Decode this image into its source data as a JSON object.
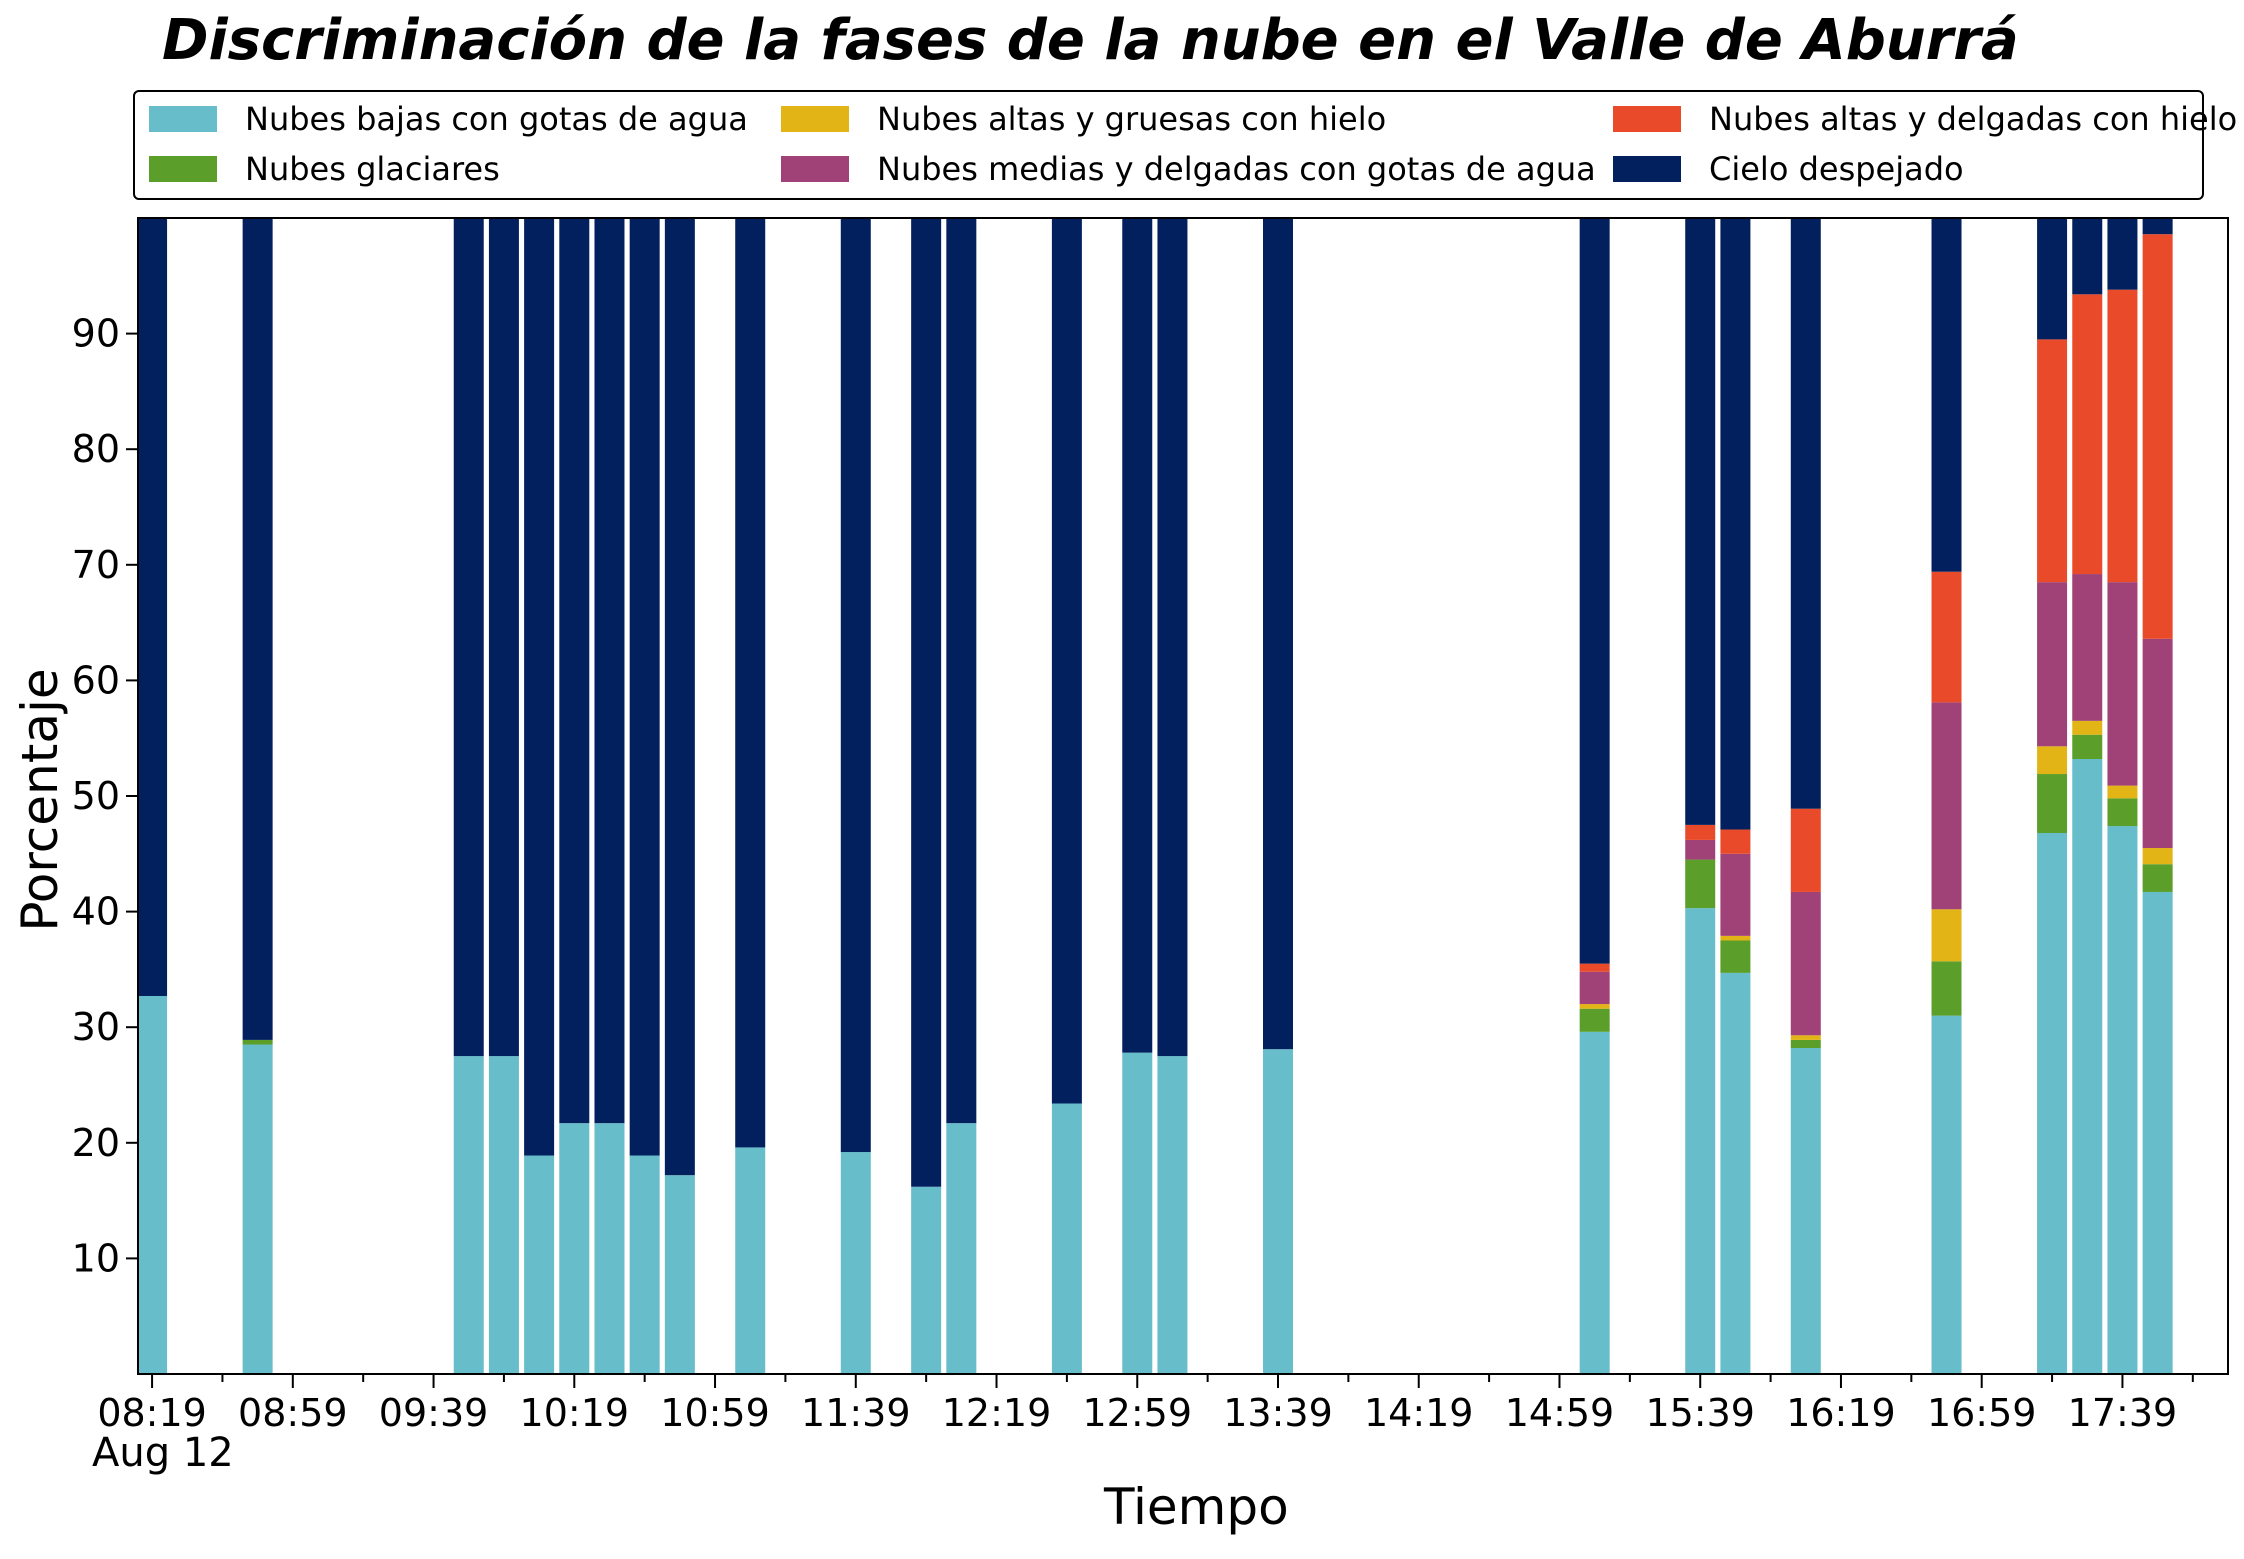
{
  "chart_data": {
    "type": "bar",
    "stacked": true,
    "title": "Discriminación de la fases de la nube en el Valle de Aburrá",
    "xlabel": "Tiempo",
    "ylabel": "Porcentaje",
    "date_label": "Aug 12",
    "ylim": [
      0,
      100
    ],
    "y_ticks": [
      10,
      20,
      30,
      40,
      50,
      60,
      70,
      80,
      90
    ],
    "x_tick_labels": [
      "08:19",
      "08:59",
      "09:39",
      "10:19",
      "10:59",
      "11:39",
      "12:19",
      "12:59",
      "13:39",
      "14:19",
      "14:59",
      "15:39",
      "16:19",
      "16:59",
      "17:39"
    ],
    "x_range": [
      "08:15",
      "18:09"
    ],
    "legend_position": "top",
    "x": [
      "08:19",
      "08:49",
      "09:49",
      "09:59",
      "10:09",
      "10:19",
      "10:29",
      "10:39",
      "10:49",
      "11:09",
      "11:39",
      "11:59",
      "12:09",
      "12:39",
      "12:59",
      "13:09",
      "13:39",
      "15:09",
      "15:39",
      "15:49",
      "16:09",
      "16:49",
      "17:19",
      "17:29",
      "17:39",
      "17:49"
    ],
    "series": [
      {
        "name": "Nubes bajas con gotas de agua",
        "color": "#67bdc9",
        "values": [
          32.7,
          28.5,
          27.5,
          27.5,
          18.9,
          21.7,
          21.7,
          18.9,
          17.2,
          19.6,
          19.2,
          16.2,
          21.7,
          23.4,
          27.8,
          27.5,
          28.1,
          29.6,
          40.3,
          34.7,
          28.2,
          31.0,
          46.8,
          53.2,
          47.4,
          41.7
        ]
      },
      {
        "name": "Nubes glaciares",
        "color": "#5b9e2a",
        "values": [
          0,
          0.4,
          0,
          0,
          0,
          0,
          0,
          0,
          0,
          0,
          0,
          0,
          0,
          0,
          0,
          0,
          0,
          2.0,
          4.2,
          2.8,
          0.7,
          4.7,
          5.1,
          2.1,
          2.4,
          2.4
        ]
      },
      {
        "name": "Nubes altas y gruesas con hielo",
        "color": "#e2b416",
        "values": [
          0,
          0,
          0,
          0,
          0,
          0,
          0,
          0,
          0,
          0,
          0,
          0,
          0,
          0,
          0,
          0,
          0,
          0.4,
          0,
          0.4,
          0.4,
          4.5,
          2.4,
          1.2,
          1.1,
          1.4
        ]
      },
      {
        "name": "Nubes medias y delgadas con gotas de agua",
        "color": "#a04277",
        "values": [
          0,
          0,
          0,
          0,
          0,
          0,
          0,
          0,
          0,
          0,
          0,
          0,
          0,
          0,
          0,
          0,
          0,
          2.8,
          1.7,
          7.1,
          12.4,
          17.9,
          14.2,
          12.7,
          17.6,
          18.1
        ]
      },
      {
        "name": "Nubes altas y delgadas con hielo",
        "color": "#e94b2a",
        "values": [
          0,
          0,
          0,
          0,
          0,
          0,
          0,
          0,
          0,
          0,
          0,
          0,
          0,
          0,
          0,
          0,
          0,
          0.7,
          1.3,
          2.1,
          7.2,
          11.3,
          21.0,
          24.2,
          25.3,
          35.0
        ]
      },
      {
        "name": "Cielo despejado",
        "color": "#03205e",
        "values": [
          67.3,
          71.1,
          72.5,
          72.5,
          81.1,
          78.3,
          78.3,
          81.1,
          82.8,
          80.4,
          80.8,
          83.8,
          78.3,
          76.6,
          72.2,
          72.5,
          71.9,
          64.5,
          52.5,
          52.9,
          51.1,
          30.6,
          10.5,
          6.6,
          6.2,
          1.4
        ]
      }
    ]
  }
}
